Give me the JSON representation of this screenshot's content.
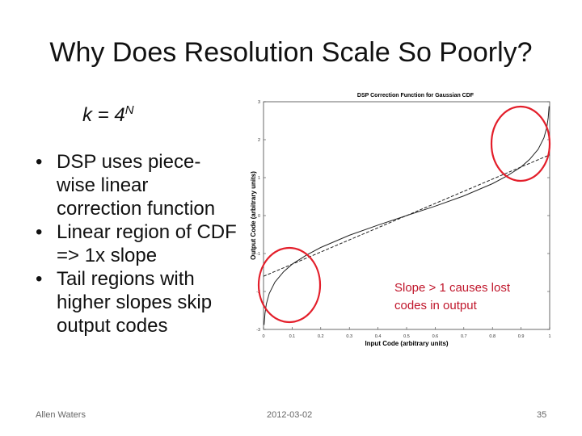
{
  "slide": {
    "title": "Why Does Resolution Scale So Poorly?",
    "formula": {
      "base": "k = 4",
      "exponent": "N"
    },
    "bullets": [
      "DSP uses piece-wise linear correction function",
      "Linear region of CDF => 1x slope",
      "Tail regions with higher slopes skip output codes"
    ],
    "annotation": {
      "line1": "Slope > 1 causes lost",
      "line2": "codes in output",
      "color": "#c0162b"
    },
    "footer": {
      "author": "Allen Waters",
      "date": "2012-03-02",
      "page": "35"
    }
  },
  "chart_data": {
    "type": "line",
    "title": "DSP Correction Function for Gaussian CDF",
    "xlabel": "Input Code (arbitrary units)",
    "ylabel": "Output Code (arbitrary units)",
    "xlim": [
      0,
      1
    ],
    "ylim": [
      -3,
      3
    ],
    "x_ticks": [
      "0",
      "0.1",
      "0.2",
      "0.3",
      "0.4",
      "0.5",
      "0.6",
      "0.7",
      "0.8",
      "0.9",
      "1"
    ],
    "y_ticks": [
      "-3",
      "-2",
      "-1",
      "0",
      "1",
      "2",
      "3"
    ],
    "grid": false,
    "series": [
      {
        "style": "solid",
        "x": [
          0.002,
          0.005,
          0.01,
          0.02,
          0.04,
          0.07,
          0.1,
          0.15,
          0.2,
          0.3,
          0.4,
          0.5,
          0.6,
          0.7,
          0.8,
          0.85,
          0.9,
          0.93,
          0.96,
          0.98,
          0.99,
          0.995,
          0.998
        ],
        "y": [
          -2.88,
          -2.58,
          -2.33,
          -2.05,
          -1.75,
          -1.48,
          -1.28,
          -1.04,
          -0.84,
          -0.52,
          -0.25,
          0.0,
          0.25,
          0.52,
          0.84,
          1.04,
          1.28,
          1.48,
          1.75,
          2.05,
          2.33,
          2.58,
          2.88
        ]
      },
      {
        "style": "dashed",
        "x": [
          0.0,
          0.1,
          0.9,
          1.0
        ],
        "y": [
          -1.6,
          -1.28,
          1.28,
          1.6
        ]
      }
    ],
    "circles_color": "#e31e2a"
  }
}
